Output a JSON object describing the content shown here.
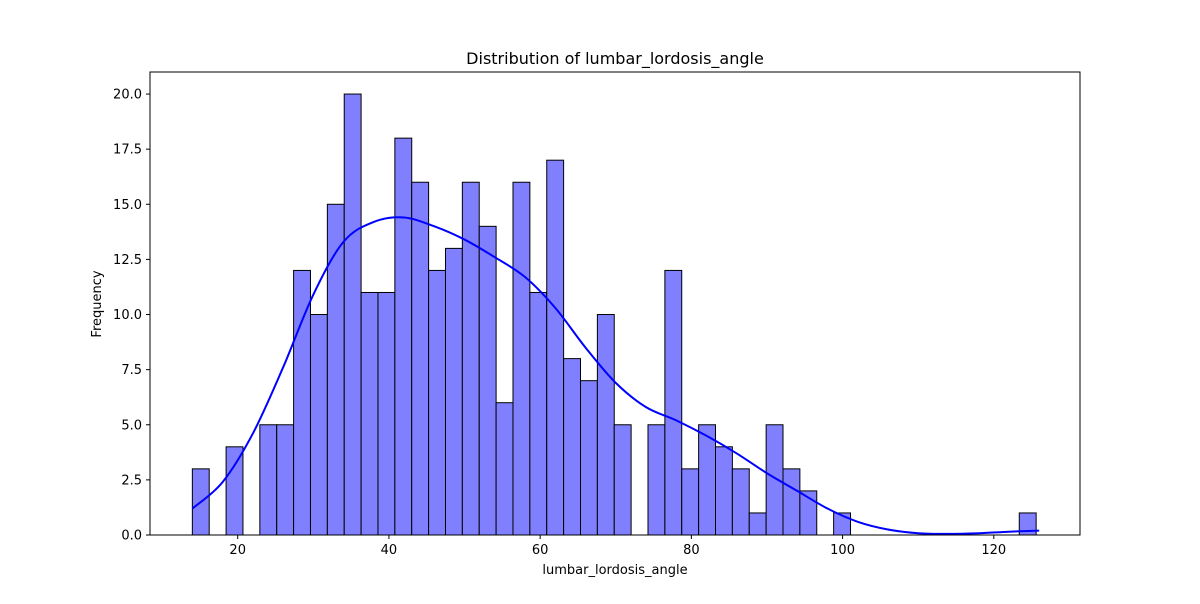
{
  "chart_data": {
    "type": "bar",
    "subtype": "histogram",
    "title": "Distribution of lumbar_lordosis_angle",
    "xlabel": "lumbar_lordosis_angle",
    "ylabel": "Frequency",
    "xlim": [
      8.4,
      131.4
    ],
    "ylim": [
      0,
      21
    ],
    "xticks": [
      20,
      40,
      60,
      80,
      100,
      120
    ],
    "yticks": [
      0.0,
      2.5,
      5.0,
      7.5,
      10.0,
      12.5,
      15.0,
      17.5,
      20.0
    ],
    "ytick_labels": [
      "0.0",
      "2.5",
      "5.0",
      "7.5",
      "10.0",
      "12.5",
      "15.0",
      "17.5",
      "20.0"
    ],
    "bin_start": 14.0,
    "bin_width": 2.232,
    "counts": [
      3,
      0,
      4,
      0,
      5,
      5,
      12,
      10,
      15,
      20,
      11,
      11,
      18,
      16,
      12,
      13,
      16,
      14,
      6,
      16,
      11,
      17,
      8,
      7,
      10,
      5,
      0,
      5,
      12,
      3,
      5,
      4,
      3,
      1,
      5,
      3,
      2,
      0,
      1,
      0,
      0,
      0,
      0,
      0,
      0,
      0,
      0,
      0,
      0,
      1
    ],
    "kde": {
      "x": [
        14,
        18,
        22,
        26,
        30,
        34,
        38,
        42,
        46,
        50,
        54,
        58,
        62,
        66,
        70,
        74,
        78,
        82,
        86,
        90,
        94,
        98,
        102,
        106,
        110,
        114,
        118,
        122,
        126
      ],
      "y": [
        1.2,
        2.4,
        4.6,
        7.6,
        10.9,
        13.3,
        14.2,
        14.4,
        14.0,
        13.4,
        12.6,
        11.7,
        10.3,
        8.5,
        6.9,
        5.8,
        5.2,
        4.5,
        3.7,
        2.8,
        2.0,
        1.2,
        0.6,
        0.25,
        0.08,
        0.05,
        0.08,
        0.15,
        0.2
      ]
    },
    "colors": {
      "bar_fill": "#8080ff",
      "bar_edge": "#000000",
      "kde_line": "#0000ff"
    },
    "grid": false,
    "legend": "none"
  }
}
